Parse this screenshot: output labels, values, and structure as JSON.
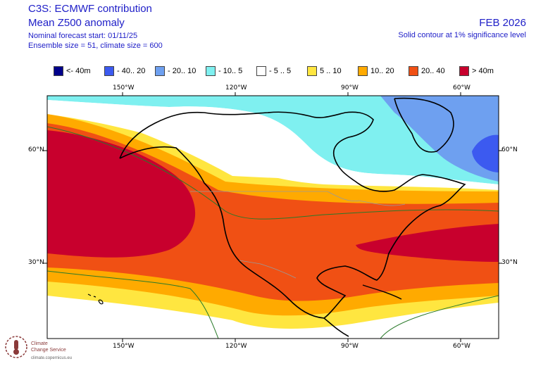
{
  "header": {
    "title_line1": "C3S: ECMWF contribution",
    "title_line2": "Mean Z500 anomaly",
    "forecast_start": "Nominal forecast start: 01/11/25",
    "ensemble": "Ensemble size = 51, climate size = 600",
    "valid_month": "FEB 2026",
    "significance_note": "Solid contour at 1% significance level"
  },
  "legend": [
    {
      "label": "<- 40m",
      "color": "#00008b"
    },
    {
      "label": "- 40.. 20",
      "color": "#3c5af0"
    },
    {
      "label": "- 20.. 10",
      "color": "#6ea0f0"
    },
    {
      "label": "- 10.. 5",
      "color": "#7ff0f0"
    },
    {
      "label": "- 5 .. 5",
      "color": "#ffffff"
    },
    {
      "label": "5 .. 10",
      "color": "#ffe640"
    },
    {
      "label": "10.. 20",
      "color": "#ffaa00"
    },
    {
      "label": "20.. 40",
      "color": "#f05014"
    },
    {
      "label": "> 40m",
      "color": "#c8002d"
    }
  ],
  "axes": {
    "lon_labels_top": [
      "150°W",
      "120°W",
      "90°W",
      "60°W"
    ],
    "lon_labels_bottom": [
      "150°W",
      "120°W",
      "90°W",
      "60°W"
    ],
    "lat_labels_left": [
      "60°N",
      "30°N"
    ],
    "lat_labels_right": [
      "60°N",
      "30°N"
    ]
  },
  "logo": {
    "name_line1": "Climate",
    "name_line2": "Change Service",
    "url": "climate.copernicus.eu"
  }
}
